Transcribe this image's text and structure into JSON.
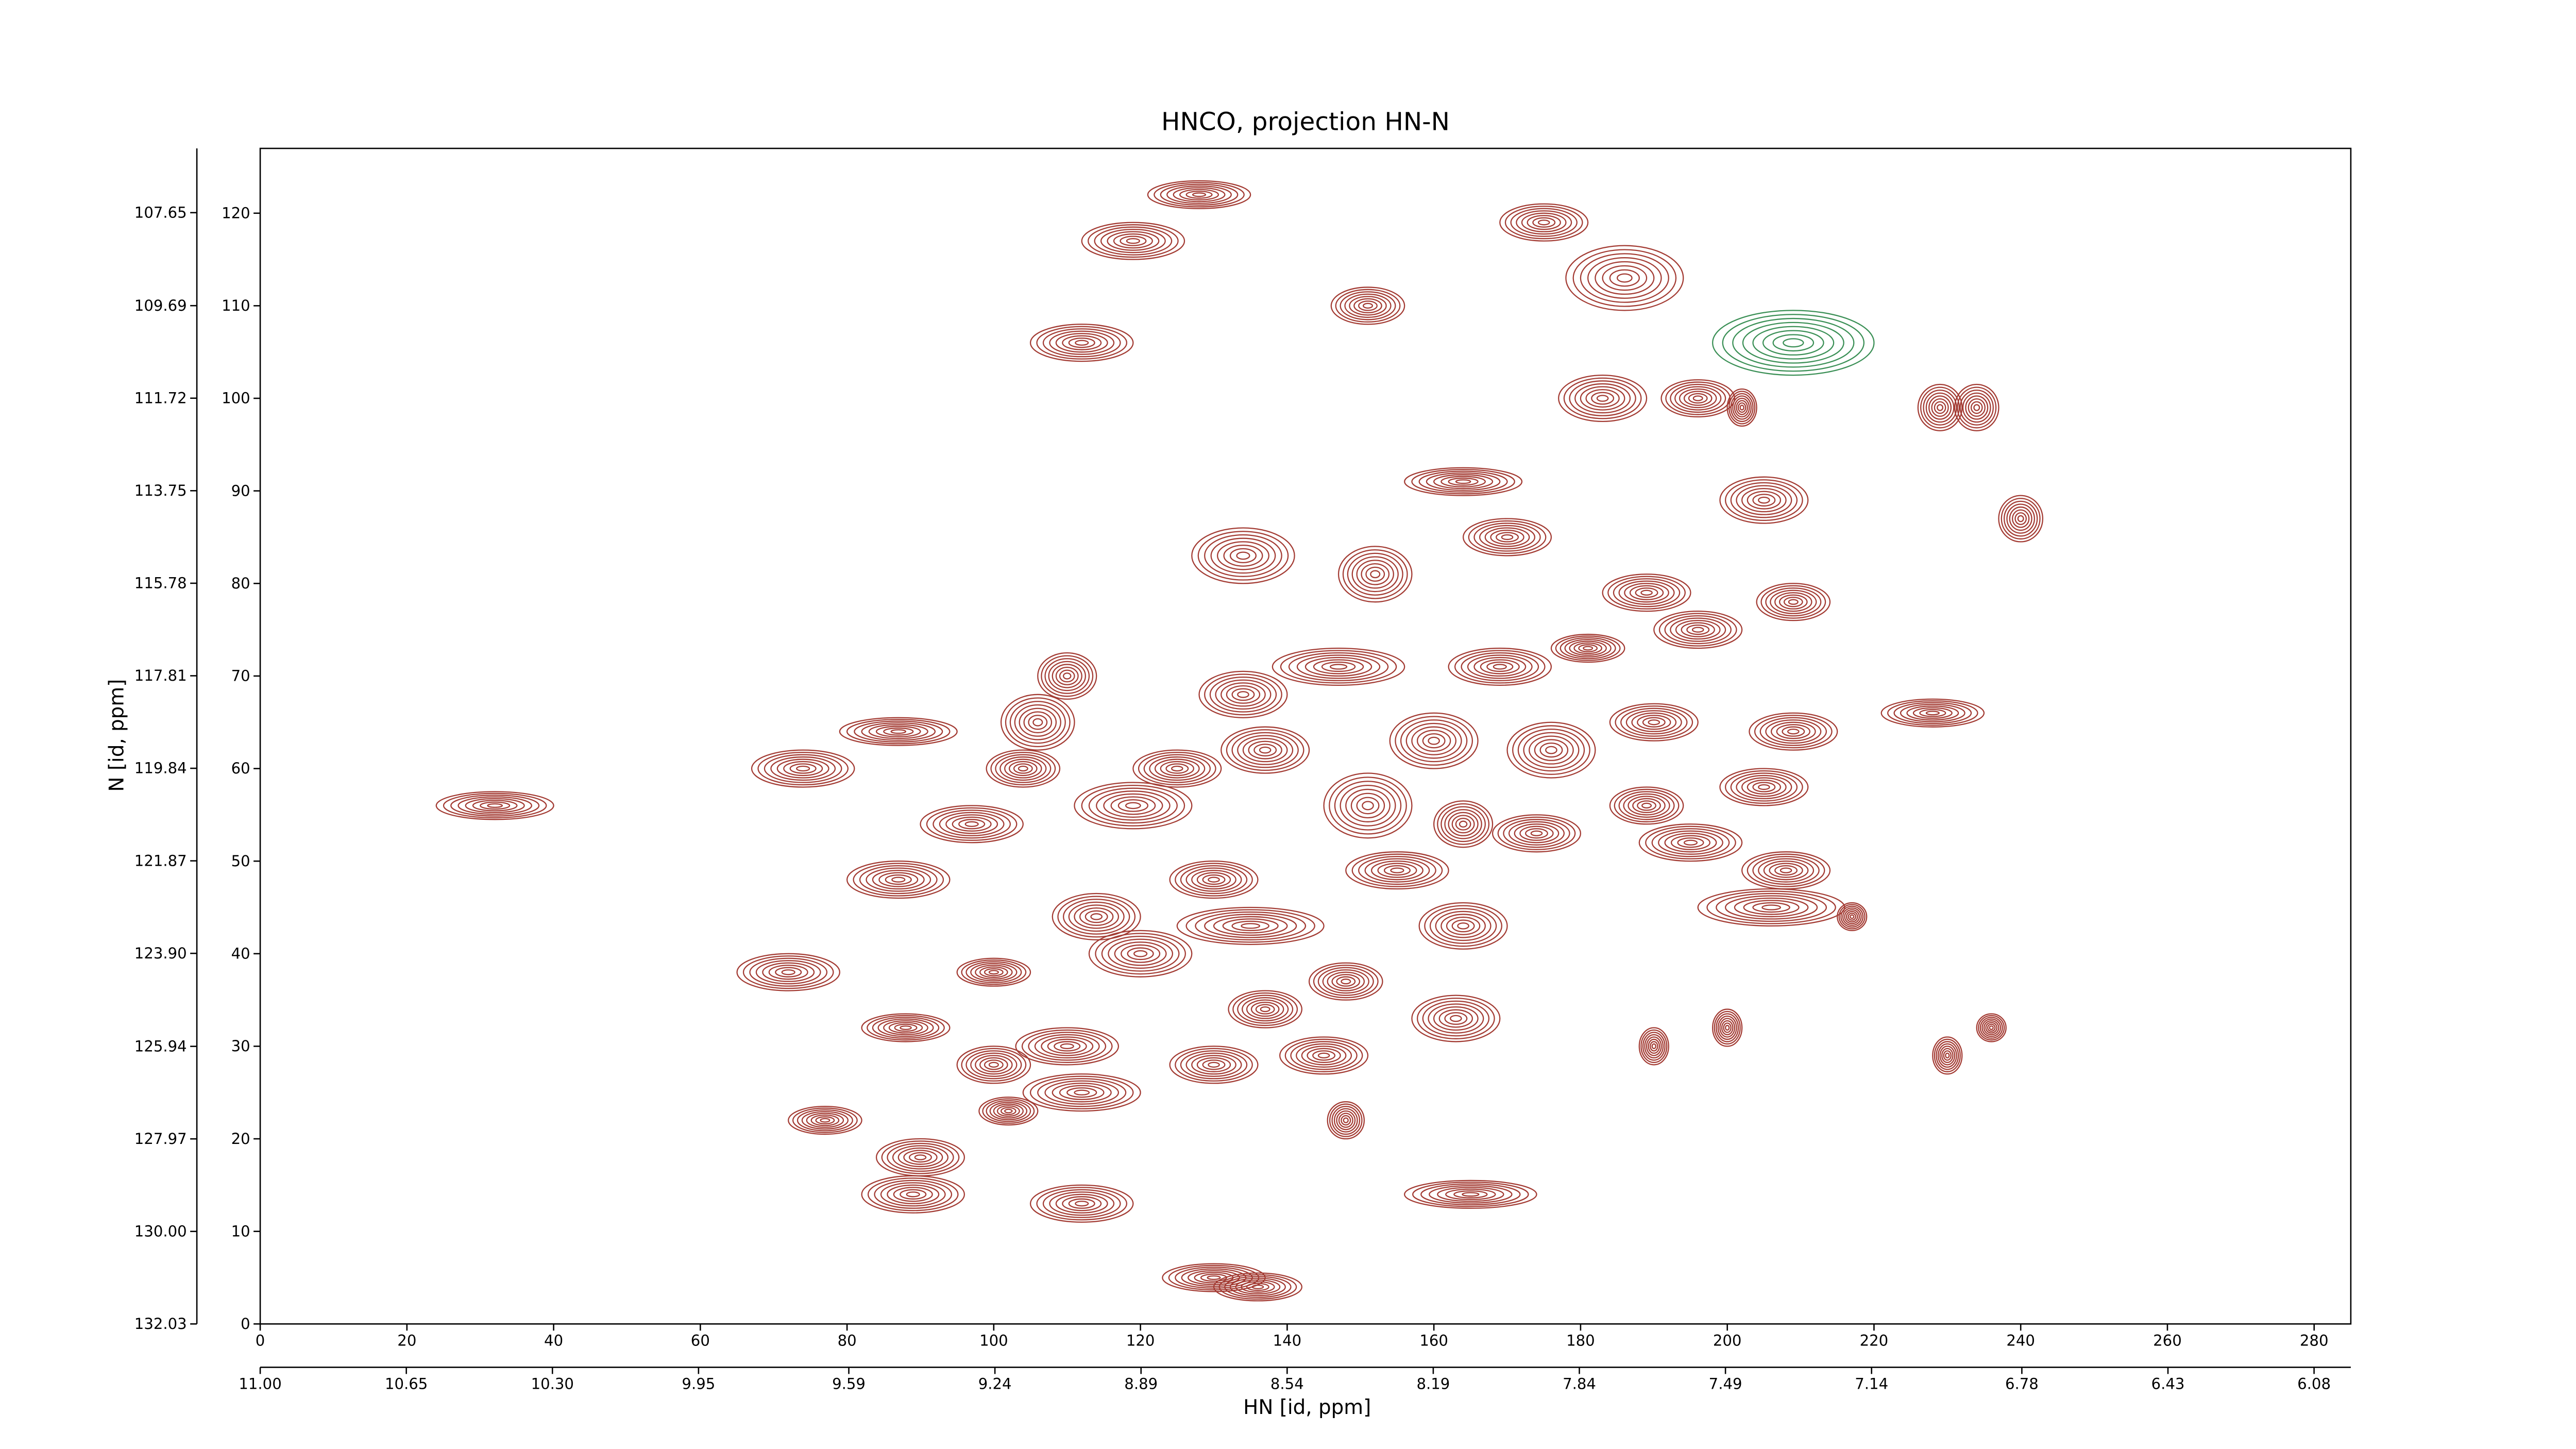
{
  "chart_data": {
    "type": "contour",
    "title": "HNCO, projection HN-N",
    "x_label": "HN [id, ppm]",
    "y_label": "N [id, ppm]",
    "xlim": [
      0,
      285
    ],
    "ylim": [
      0,
      127
    ],
    "xticks": [
      0,
      20,
      40,
      60,
      80,
      100,
      120,
      140,
      160,
      180,
      200,
      220,
      240,
      260,
      280
    ],
    "yticks": [
      0,
      10,
      20,
      30,
      40,
      50,
      60,
      70,
      80,
      90,
      100,
      110,
      120
    ],
    "x2lim": [
      11.0,
      5.992
    ],
    "x2ticks": [
      {
        "value": 11.0,
        "label": "11.00"
      },
      10.65,
      {
        "value": 10.3,
        "label": "10.30"
      },
      9.95,
      9.59,
      9.24,
      8.89,
      8.54,
      8.19,
      7.84,
      7.49,
      7.14,
      6.78,
      6.43,
      6.08
    ],
    "y2lim": [
      132.03,
      106.24
    ],
    "y2ticks": [
      132.03,
      {
        "value": 130.0,
        "label": "130.00"
      },
      127.97,
      125.94,
      {
        "value": 123.9,
        "label": "123.90"
      },
      121.87,
      119.84,
      117.81,
      115.78,
      113.75,
      111.72,
      109.69,
      107.65
    ],
    "peaks": [
      {
        "x": 32,
        "y": 56,
        "x_width": 16,
        "y_width": 3,
        "color": "#a33b33"
      },
      {
        "x": 74,
        "y": 60,
        "x_width": 14,
        "y_width": 4,
        "color": "#a33b33"
      },
      {
        "x": 87,
        "y": 64,
        "x_width": 16,
        "y_width": 3,
        "color": "#a33b33"
      },
      {
        "x": 97,
        "y": 54,
        "x_width": 14,
        "y_width": 4,
        "color": "#a33b33"
      },
      {
        "x": 87,
        "y": 48,
        "x_width": 14,
        "y_width": 4,
        "color": "#a33b33"
      },
      {
        "x": 72,
        "y": 38,
        "x_width": 14,
        "y_width": 4,
        "color": "#a33b33"
      },
      {
        "x": 88,
        "y": 32,
        "x_width": 12,
        "y_width": 3,
        "color": "#a33b33"
      },
      {
        "x": 77,
        "y": 22,
        "x_width": 10,
        "y_width": 3,
        "color": "#a33b33"
      },
      {
        "x": 90,
        "y": 18,
        "x_width": 12,
        "y_width": 4,
        "color": "#a33b33"
      },
      {
        "x": 89,
        "y": 14,
        "x_width": 14,
        "y_width": 4,
        "color": "#a33b33"
      },
      {
        "x": 112,
        "y": 13,
        "x_width": 14,
        "y_width": 4,
        "color": "#a33b33"
      },
      {
        "x": 130,
        "y": 5,
        "x_width": 14,
        "y_width": 3,
        "color": "#a33b33"
      },
      {
        "x": 136,
        "y": 4,
        "x_width": 12,
        "y_width": 3,
        "color": "#a33b33"
      },
      {
        "x": 112,
        "y": 106,
        "x_width": 14,
        "y_width": 4,
        "color": "#a33b33"
      },
      {
        "x": 119,
        "y": 117,
        "x_width": 14,
        "y_width": 4,
        "color": "#a33b33"
      },
      {
        "x": 128,
        "y": 122,
        "x_width": 14,
        "y_width": 3,
        "color": "#a33b33"
      },
      {
        "x": 151,
        "y": 110,
        "x_width": 10,
        "y_width": 4,
        "color": "#a33b33"
      },
      {
        "x": 175,
        "y": 119,
        "x_width": 12,
        "y_width": 4,
        "color": "#a33b33"
      },
      {
        "x": 186,
        "y": 113,
        "x_width": 16,
        "y_width": 7,
        "color": "#a33b33"
      },
      {
        "x": 209,
        "y": 106,
        "x_width": 22,
        "y_width": 7,
        "color": "#3a8f55"
      },
      {
        "x": 183,
        "y": 100,
        "x_width": 12,
        "y_width": 5,
        "color": "#a33b33"
      },
      {
        "x": 196,
        "y": 100,
        "x_width": 10,
        "y_width": 4,
        "color": "#a33b33"
      },
      {
        "x": 202,
        "y": 99,
        "x_width": 4,
        "y_width": 4,
        "color": "#a33b33"
      },
      {
        "x": 229,
        "y": 99,
        "x_width": 6,
        "y_width": 5,
        "color": "#a33b33"
      },
      {
        "x": 234,
        "y": 99,
        "x_width": 6,
        "y_width": 5,
        "color": "#a33b33"
      },
      {
        "x": 240,
        "y": 87,
        "x_width": 6,
        "y_width": 5,
        "color": "#a33b33"
      },
      {
        "x": 205,
        "y": 89,
        "x_width": 12,
        "y_width": 5,
        "color": "#a33b33"
      },
      {
        "x": 164,
        "y": 91,
        "x_width": 16,
        "y_width": 3,
        "color": "#a33b33"
      },
      {
        "x": 170,
        "y": 85,
        "x_width": 12,
        "y_width": 4,
        "color": "#a33b33"
      },
      {
        "x": 134,
        "y": 83,
        "x_width": 14,
        "y_width": 6,
        "color": "#a33b33"
      },
      {
        "x": 152,
        "y": 81,
        "x_width": 10,
        "y_width": 6,
        "color": "#a33b33"
      },
      {
        "x": 189,
        "y": 79,
        "x_width": 12,
        "y_width": 4,
        "color": "#a33b33"
      },
      {
        "x": 196,
        "y": 75,
        "x_width": 12,
        "y_width": 4,
        "color": "#a33b33"
      },
      {
        "x": 209,
        "y": 78,
        "x_width": 10,
        "y_width": 4,
        "color": "#a33b33"
      },
      {
        "x": 181,
        "y": 73,
        "x_width": 10,
        "y_width": 3,
        "color": "#a33b33"
      },
      {
        "x": 147,
        "y": 71,
        "x_width": 18,
        "y_width": 4,
        "color": "#a33b33"
      },
      {
        "x": 169,
        "y": 71,
        "x_width": 14,
        "y_width": 4,
        "color": "#a33b33"
      },
      {
        "x": 134,
        "y": 68,
        "x_width": 12,
        "y_width": 5,
        "color": "#a33b33"
      },
      {
        "x": 110,
        "y": 70,
        "x_width": 8,
        "y_width": 5,
        "color": "#a33b33"
      },
      {
        "x": 106,
        "y": 65,
        "x_width": 10,
        "y_width": 6,
        "color": "#a33b33"
      },
      {
        "x": 190,
        "y": 65,
        "x_width": 12,
        "y_width": 4,
        "color": "#a33b33"
      },
      {
        "x": 209,
        "y": 64,
        "x_width": 12,
        "y_width": 4,
        "color": "#a33b33"
      },
      {
        "x": 228,
        "y": 66,
        "x_width": 14,
        "y_width": 3,
        "color": "#a33b33"
      },
      {
        "x": 104,
        "y": 60,
        "x_width": 10,
        "y_width": 4,
        "color": "#a33b33"
      },
      {
        "x": 125,
        "y": 60,
        "x_width": 12,
        "y_width": 4,
        "color": "#a33b33"
      },
      {
        "x": 137,
        "y": 62,
        "x_width": 12,
        "y_width": 5,
        "color": "#a33b33"
      },
      {
        "x": 160,
        "y": 63,
        "x_width": 12,
        "y_width": 6,
        "color": "#a33b33"
      },
      {
        "x": 176,
        "y": 62,
        "x_width": 12,
        "y_width": 6,
        "color": "#a33b33"
      },
      {
        "x": 119,
        "y": 56,
        "x_width": 16,
        "y_width": 5,
        "color": "#a33b33"
      },
      {
        "x": 151,
        "y": 56,
        "x_width": 12,
        "y_width": 7,
        "color": "#a33b33"
      },
      {
        "x": 189,
        "y": 56,
        "x_width": 10,
        "y_width": 4,
        "color": "#a33b33"
      },
      {
        "x": 205,
        "y": 58,
        "x_width": 12,
        "y_width": 4,
        "color": "#a33b33"
      },
      {
        "x": 174,
        "y": 53,
        "x_width": 12,
        "y_width": 4,
        "color": "#a33b33"
      },
      {
        "x": 195,
        "y": 52,
        "x_width": 14,
        "y_width": 4,
        "color": "#a33b33"
      },
      {
        "x": 164,
        "y": 54,
        "x_width": 8,
        "y_width": 5,
        "color": "#a33b33"
      },
      {
        "x": 130,
        "y": 48,
        "x_width": 12,
        "y_width": 4,
        "color": "#a33b33"
      },
      {
        "x": 155,
        "y": 49,
        "x_width": 14,
        "y_width": 4,
        "color": "#a33b33"
      },
      {
        "x": 208,
        "y": 49,
        "x_width": 12,
        "y_width": 4,
        "color": "#a33b33"
      },
      {
        "x": 206,
        "y": 45,
        "x_width": 20,
        "y_width": 4,
        "color": "#a33b33"
      },
      {
        "x": 164,
        "y": 43,
        "x_width": 12,
        "y_width": 5,
        "color": "#a33b33"
      },
      {
        "x": 114,
        "y": 44,
        "x_width": 12,
        "y_width": 5,
        "color": "#a33b33"
      },
      {
        "x": 135,
        "y": 43,
        "x_width": 20,
        "y_width": 4,
        "color": "#a33b33"
      },
      {
        "x": 100,
        "y": 38,
        "x_width": 10,
        "y_width": 3,
        "color": "#a33b33"
      },
      {
        "x": 120,
        "y": 40,
        "x_width": 14,
        "y_width": 5,
        "color": "#a33b33"
      },
      {
        "x": 148,
        "y": 37,
        "x_width": 10,
        "y_width": 4,
        "color": "#a33b33"
      },
      {
        "x": 163,
        "y": 33,
        "x_width": 12,
        "y_width": 5,
        "color": "#a33b33"
      },
      {
        "x": 137,
        "y": 34,
        "x_width": 10,
        "y_width": 4,
        "color": "#a33b33"
      },
      {
        "x": 145,
        "y": 29,
        "x_width": 12,
        "y_width": 4,
        "color": "#a33b33"
      },
      {
        "x": 110,
        "y": 30,
        "x_width": 14,
        "y_width": 4,
        "color": "#a33b33"
      },
      {
        "x": 100,
        "y": 28,
        "x_width": 10,
        "y_width": 4,
        "color": "#a33b33"
      },
      {
        "x": 112,
        "y": 25,
        "x_width": 16,
        "y_width": 4,
        "color": "#a33b33"
      },
      {
        "x": 130,
        "y": 28,
        "x_width": 12,
        "y_width": 4,
        "color": "#a33b33"
      },
      {
        "x": 102,
        "y": 23,
        "x_width": 8,
        "y_width": 3,
        "color": "#a33b33"
      },
      {
        "x": 148,
        "y": 22,
        "x_width": 5,
        "y_width": 4,
        "color": "#a33b33"
      },
      {
        "x": 165,
        "y": 14,
        "x_width": 18,
        "y_width": 3,
        "color": "#a33b33"
      },
      {
        "x": 190,
        "y": 30,
        "x_width": 4,
        "y_width": 4,
        "color": "#a33b33"
      },
      {
        "x": 200,
        "y": 32,
        "x_width": 4,
        "y_width": 4,
        "color": "#a33b33"
      },
      {
        "x": 230,
        "y": 29,
        "x_width": 4,
        "y_width": 4,
        "color": "#a33b33"
      },
      {
        "x": 236,
        "y": 32,
        "x_width": 4,
        "y_width": 3,
        "color": "#a33b33"
      },
      {
        "x": 217,
        "y": 44,
        "x_width": 4,
        "y_width": 3,
        "color": "#a33b33"
      }
    ]
  }
}
